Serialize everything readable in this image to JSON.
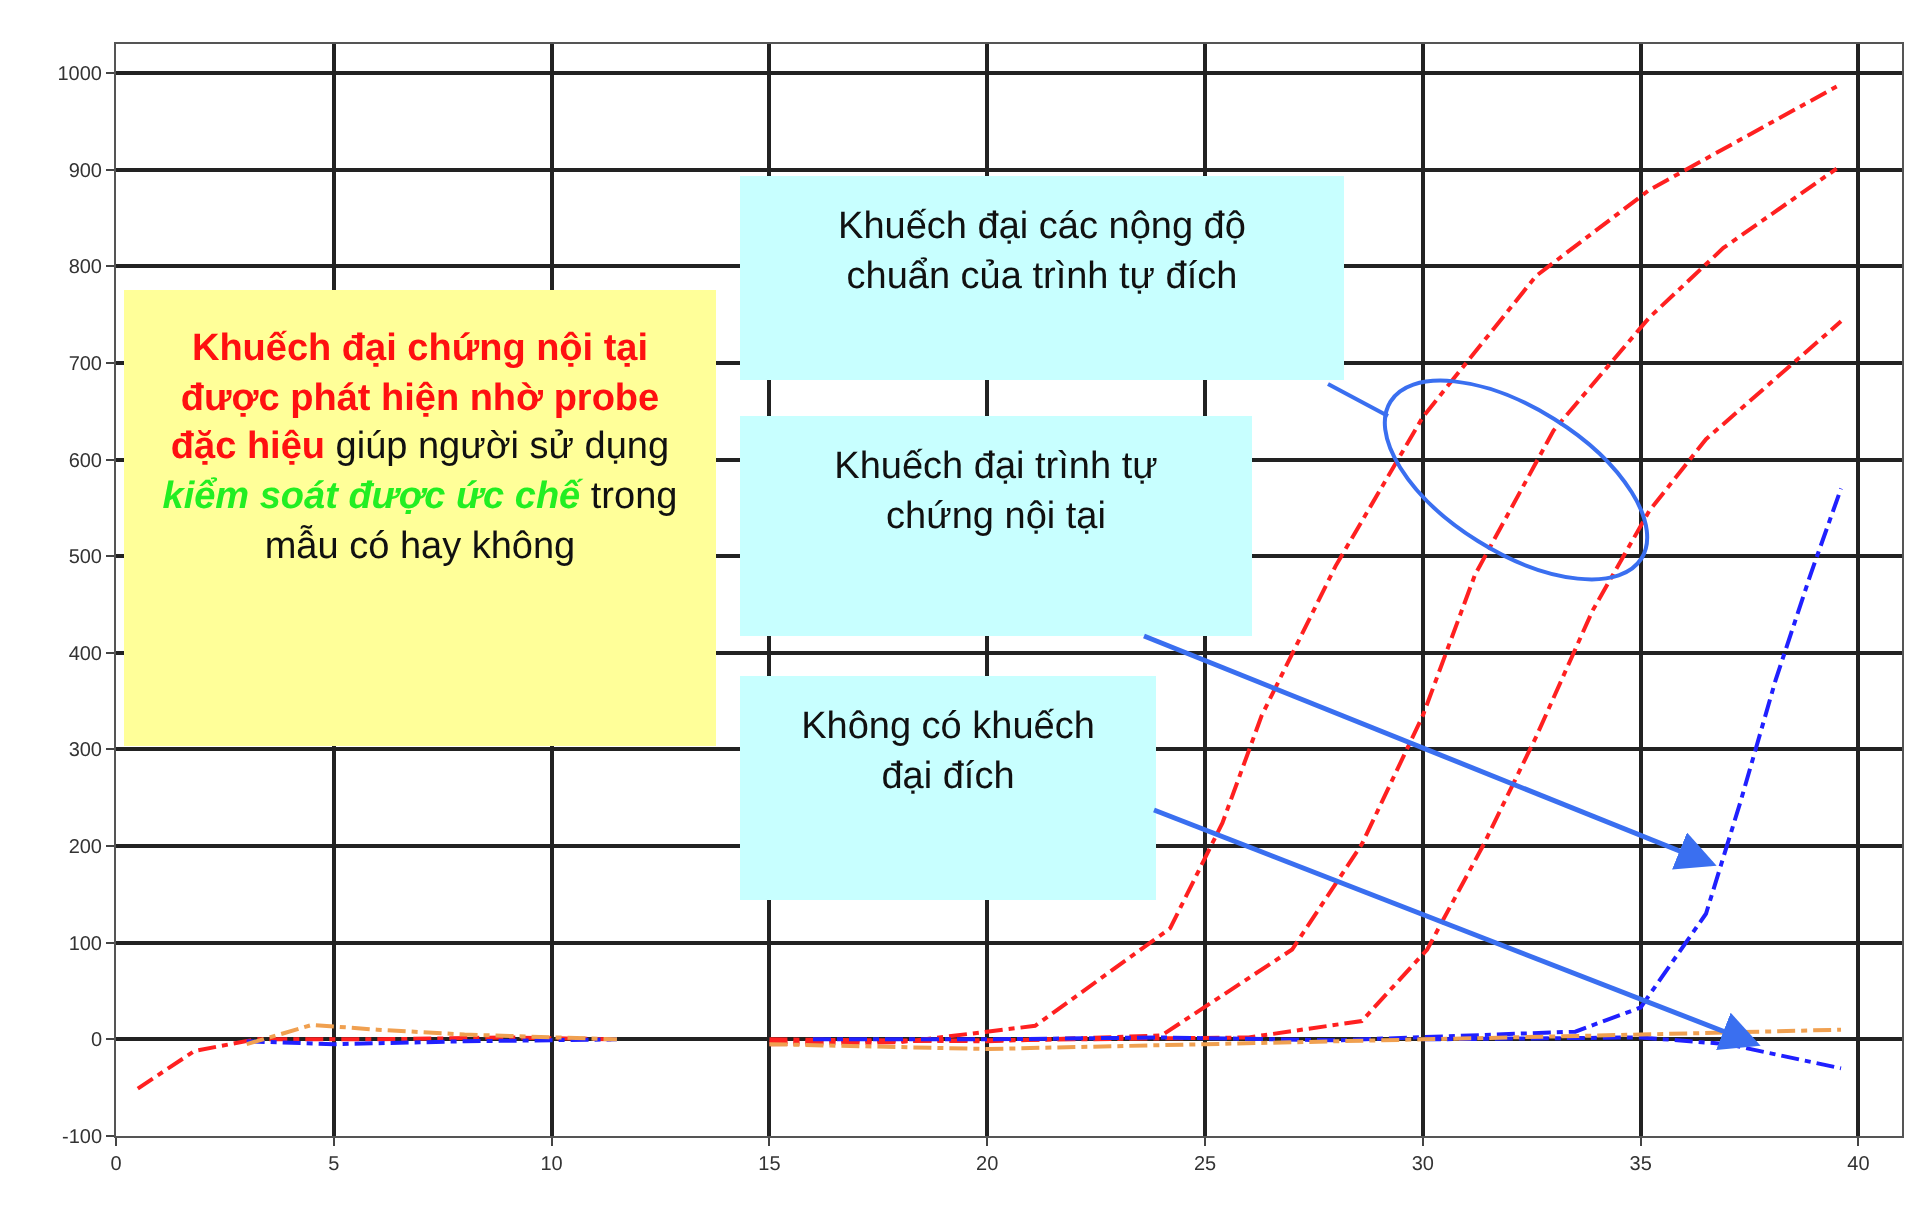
{
  "chart_data": {
    "type": "line",
    "annotations": [
      "Khuếch đại chứng nội tại được phát hiện nhờ probe đặc hiệu",
      "giúp người sử dụng",
      "kiểm soát được ức chế",
      "trong mẫu có hay không",
      "Khuếch đại các nộng độ chuẩn của trình tự đích",
      "Khuếch đại trình tự chứng nội tại",
      "Không có khuếch đại đích"
    ],
    "series": [
      {
        "color": "#ff2020",
        "x": [
          0.5,
          1.8,
          3.2,
          6,
          9,
          11.5,
          13,
          15,
          18,
          21.1,
          24.2,
          25.4,
          26.3,
          28.0,
          30.0,
          32.6,
          35.2,
          39.5
        ],
        "values": [
          -51,
          -12,
          0,
          0,
          2,
          0,
          null,
          -5,
          -3,
          14,
          115,
          224,
          335,
          490,
          644,
          790,
          879,
          986
        ]
      },
      {
        "color": "#ff2020",
        "x": [
          15,
          20,
          24.0,
          27.0,
          28.6,
          30.0,
          31.2,
          33.0,
          35.2,
          36.9,
          39.5
        ],
        "values": [
          0,
          -2,
          4,
          93,
          202,
          335,
          481,
          630,
          747,
          819,
          901
        ]
      },
      {
        "color": "#ff2020",
        "x": [
          15,
          22,
          26,
          28.6,
          30.1,
          31.4,
          32.6,
          33.9,
          35.2,
          36.5,
          39.6
        ],
        "values": [
          -3,
          0,
          2,
          19,
          93,
          202,
          313,
          444,
          547,
          621,
          743
        ]
      },
      {
        "color": "#2020ff",
        "x": [
          3,
          5,
          8,
          11.5,
          13,
          16,
          20,
          24,
          28,
          33.5,
          35.0,
          36.5,
          37.3,
          38.1,
          38.9,
          39.6
        ],
        "values": [
          -2,
          -5,
          -2,
          0,
          null,
          0,
          0,
          2,
          -1,
          8,
          33,
          130,
          247,
          372,
          481,
          570
        ]
      },
      {
        "color": "#2020ff",
        "x": [
          30,
          35,
          37,
          39.6
        ],
        "values": [
          0,
          2,
          -5,
          -30
        ]
      },
      {
        "color": "#f0a050",
        "x": [
          3,
          4.5,
          6,
          8,
          11.5,
          13,
          15,
          20,
          25,
          30,
          35,
          39.6
        ],
        "values": [
          -5,
          15,
          10,
          5,
          0,
          null,
          -5,
          -10,
          -5,
          0,
          5,
          10
        ]
      }
    ],
    "xlim": [
      0,
      41
    ],
    "xticks": [
      0,
      5,
      10,
      15,
      20,
      25,
      30,
      35,
      40
    ],
    "ylim": [
      -100,
      1030
    ],
    "yticks": [
      -100,
      0,
      100,
      200,
      300,
      400,
      500,
      600,
      700,
      800,
      900,
      1000
    ],
    "grid": true,
    "line_style": "dashed"
  }
}
